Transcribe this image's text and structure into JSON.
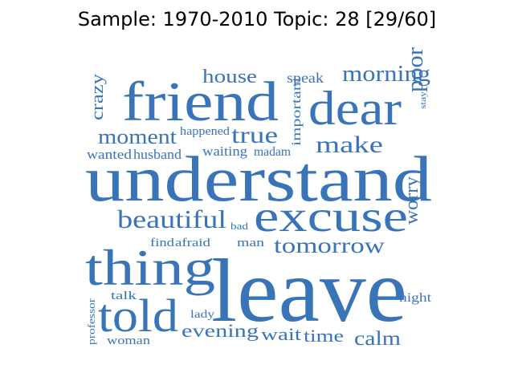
{
  "title": "Sample: 1970-2010 Topic: 28 [29/60]",
  "word_color": "#3a74b8",
  "words": [
    {
      "text": "understand"
    },
    {
      "text": "leave"
    },
    {
      "text": "friend"
    },
    {
      "text": "excuse"
    },
    {
      "text": "thing"
    },
    {
      "text": "told"
    },
    {
      "text": "dear"
    },
    {
      "text": "beautiful"
    },
    {
      "text": "make"
    },
    {
      "text": "tomorrow"
    },
    {
      "text": "true"
    },
    {
      "text": "moment"
    },
    {
      "text": "morning"
    },
    {
      "text": "house"
    },
    {
      "text": "evening"
    },
    {
      "text": "calm"
    },
    {
      "text": "wait"
    },
    {
      "text": "time"
    },
    {
      "text": "poor"
    },
    {
      "text": "worry"
    },
    {
      "text": "crazy"
    },
    {
      "text": "speak"
    },
    {
      "text": "important"
    },
    {
      "text": "happened"
    },
    {
      "text": "waiting"
    },
    {
      "text": "madam"
    },
    {
      "text": "wanted"
    },
    {
      "text": "husband"
    },
    {
      "text": "find"
    },
    {
      "text": "afraid"
    },
    {
      "text": "bad"
    },
    {
      "text": "man"
    },
    {
      "text": "talk"
    },
    {
      "text": "lady"
    },
    {
      "text": "night"
    },
    {
      "text": "woman"
    },
    {
      "text": "professor"
    },
    {
      "text": "stay"
    }
  ]
}
